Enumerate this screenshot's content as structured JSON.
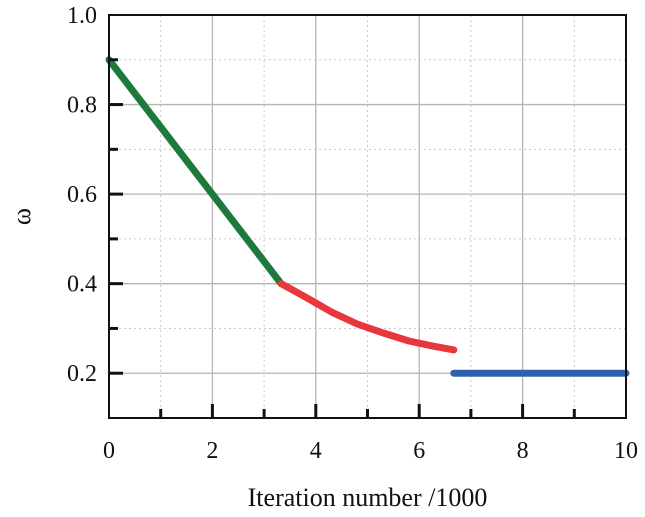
{
  "chart_data": {
    "type": "line",
    "xlabel": "Iteration number /1000",
    "ylabel": "ω",
    "xlim": [
      0,
      10
    ],
    "ylim": [
      0.1,
      1.0
    ],
    "xticks": [
      0,
      2,
      4,
      6,
      8,
      10
    ],
    "xtick_labels": [
      "0",
      "2",
      "4",
      "6",
      "8",
      "10"
    ],
    "yticks": [
      0.2,
      0.4,
      0.6,
      0.8,
      1.0
    ],
    "ytick_labels": [
      "0.2",
      "0.4",
      "0.6",
      "0.8",
      "1.0"
    ],
    "grid": true,
    "series": [
      {
        "color": "#1e7a3c",
        "x": [
          0,
          3.33
        ],
        "y": [
          0.9,
          0.4
        ]
      },
      {
        "color": "#e8383d",
        "x": [
          3.33,
          3.8,
          4.3,
          4.8,
          5.3,
          5.8,
          6.3,
          6.67
        ],
        "y": [
          0.4,
          0.37,
          0.337,
          0.31,
          0.29,
          0.272,
          0.26,
          0.252
        ]
      },
      {
        "color": "#3060b0",
        "x": [
          6.67,
          10
        ],
        "y": [
          0.2,
          0.2
        ]
      }
    ]
  }
}
